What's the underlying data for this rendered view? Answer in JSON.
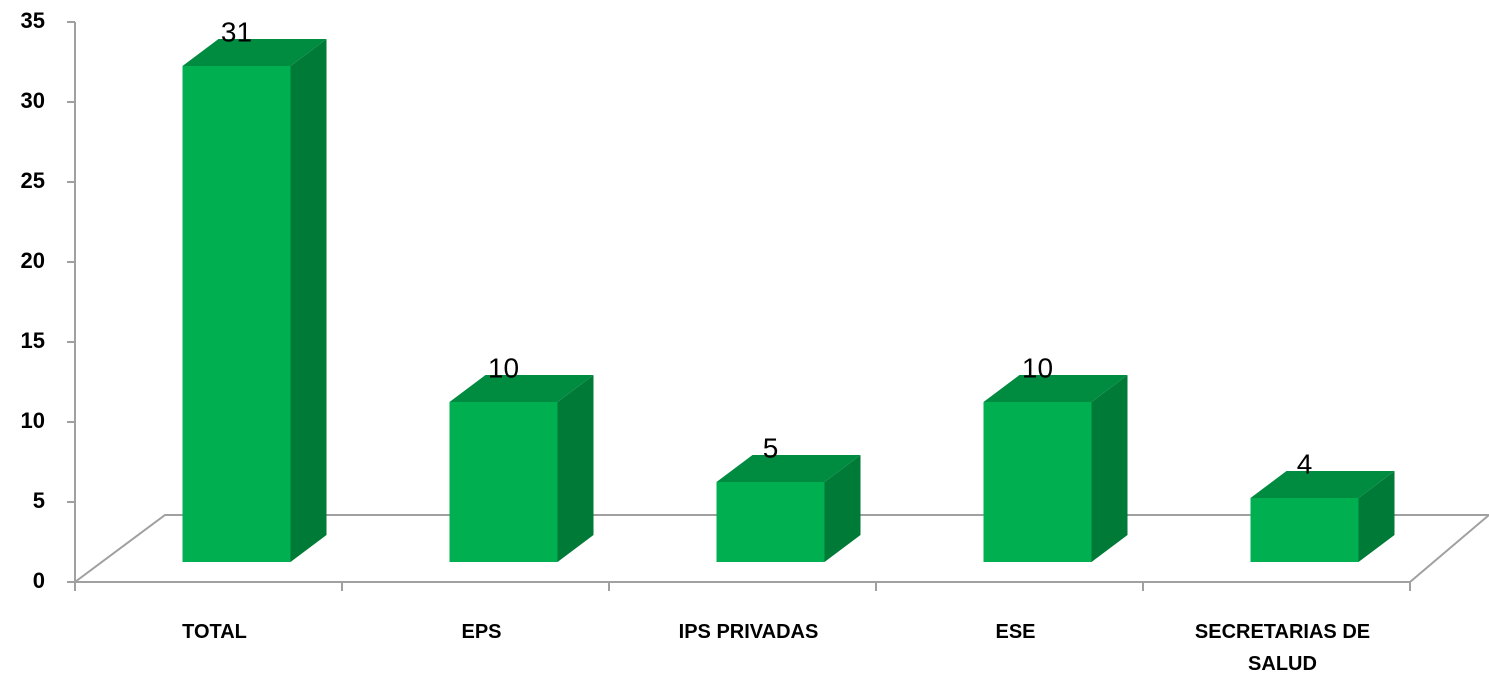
{
  "chart_data": {
    "type": "bar3d",
    "categories": [
      "TOTAL",
      "EPS",
      "IPS PRIVADAS",
      "ESE",
      "SECRETARIAS DE SALUD"
    ],
    "values": [
      31,
      10,
      5,
      10,
      4
    ],
    "color": "#00b050",
    "ylim": [
      0,
      35
    ],
    "yticks": [
      0,
      5,
      10,
      15,
      20,
      25,
      30,
      35
    ]
  }
}
